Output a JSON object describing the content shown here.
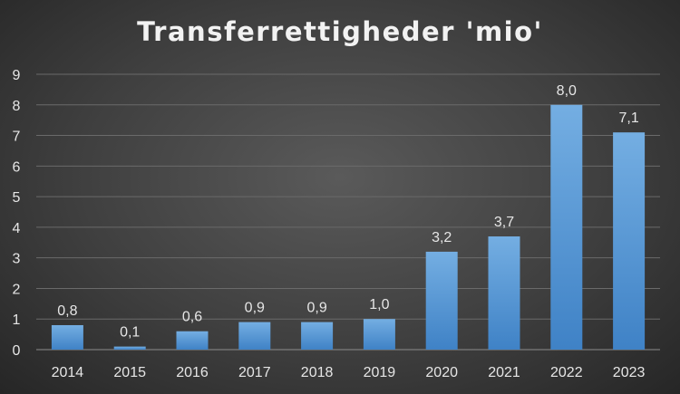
{
  "chart_data": {
    "type": "bar",
    "title": "Transferrettigheder 'mio'",
    "categories": [
      "2014",
      "2015",
      "2016",
      "2017",
      "2018",
      "2019",
      "2020",
      "2021",
      "2022",
      "2023"
    ],
    "values": [
      0.8,
      0.1,
      0.6,
      0.9,
      0.9,
      1.0,
      3.2,
      3.7,
      8.0,
      7.1
    ],
    "data_labels": [
      "0,8",
      "0,1",
      "0,6",
      "0,9",
      "0,9",
      "1,0",
      "3,2",
      "3,7",
      "8,0",
      "7,1"
    ],
    "y_ticks": [
      "0",
      "1",
      "2",
      "3",
      "4",
      "5",
      "6",
      "7",
      "8",
      "9"
    ],
    "xlabel": "",
    "ylabel": "",
    "ylim": [
      0,
      9
    ],
    "grid": true,
    "legend": "none",
    "bar_color": "#5b9bd5"
  }
}
